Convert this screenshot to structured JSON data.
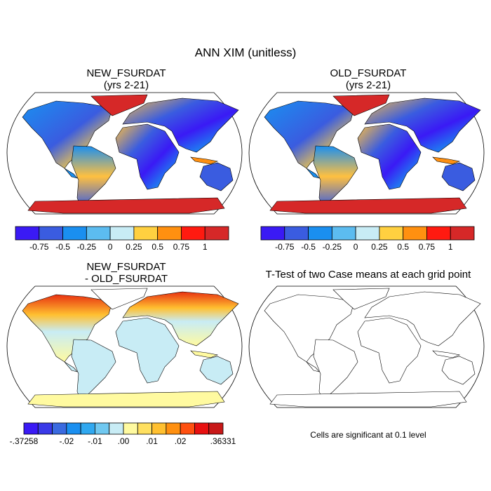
{
  "title": "ANN XIM (unitless)",
  "panels": [
    {
      "title_lines": [
        "NEW_FSURDAT",
        "(yrs 2-21)"
      ],
      "colorbar": {
        "colors": [
          "#3a1af5",
          "#3a5ce0",
          "#1a8ff0",
          "#5cbcf0",
          "#c8ecf5",
          "#ffd040",
          "#ff9010",
          "#ff1a10",
          "#d62828"
        ],
        "labels": [
          "-0.75",
          "-0.5",
          "-0.25",
          "0",
          "0.25",
          "0.5",
          "0.75",
          "1"
        ]
      }
    },
    {
      "title_lines": [
        "OLD_FSURDAT",
        "(yrs 2-21)"
      ],
      "colorbar": {
        "colors": [
          "#3a1af5",
          "#3a5ce0",
          "#1a8ff0",
          "#5cbcf0",
          "#c8ecf5",
          "#ffd040",
          "#ff9010",
          "#ff1a10",
          "#d62828"
        ],
        "labels": [
          "-0.75",
          "-0.5",
          "-0.25",
          "0",
          "0.25",
          "0.5",
          "0.75",
          "1"
        ]
      }
    },
    {
      "title_lines": [
        "NEW_FSURDAT",
        "- OLD_FSURDAT"
      ],
      "colorbar": {
        "colors": [
          "#3a1af5",
          "#3a3ae8",
          "#3a6ae0",
          "#1a8ff0",
          "#30a8f0",
          "#70c8f0",
          "#c8ecf5",
          "#fffaa0",
          "#ffe060",
          "#ffc030",
          "#ff9010",
          "#ff5010",
          "#e81010",
          "#c81818"
        ],
        "labels": [
          "-.37258",
          "-.02",
          "-.01",
          ".00",
          ".01",
          ".02",
          ".36331"
        ]
      }
    },
    {
      "title_lines": [
        "T-Test of two Case means at each grid point"
      ],
      "note": "Cells are significant at 0.1 level"
    }
  ]
}
